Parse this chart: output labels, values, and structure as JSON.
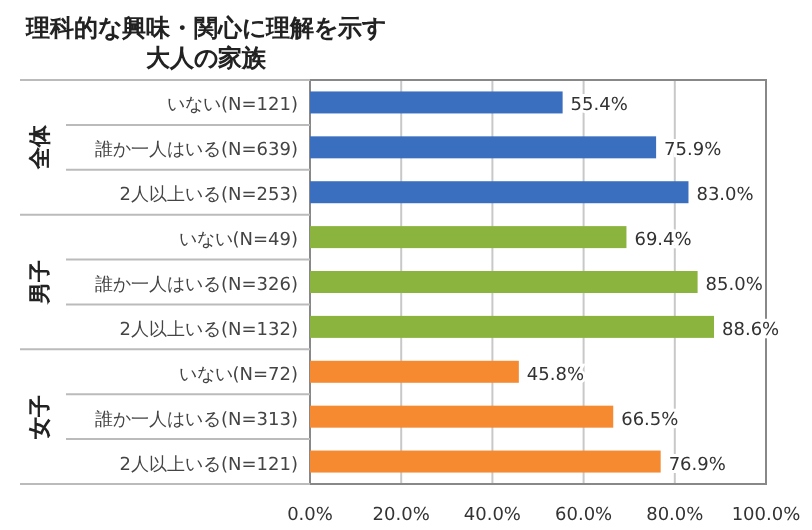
{
  "chart_data": {
    "type": "bar",
    "orientation": "horizontal",
    "title": "理科的な興味・関心に理解を示す大人の家族",
    "categories": [
      "いない(N=121)",
      "誰か一人はいる(N=639)",
      "2人以上いる(N=253)",
      "いない(N=49)",
      "誰か一人はいる(N=326)",
      "2人以上いる(N=132)",
      "いない(N=72)",
      "誰か一人はいる(N=313)",
      "2人以上いる(N=121)"
    ],
    "values": [
      55.4,
      75.9,
      83.0,
      69.4,
      85.0,
      88.6,
      45.8,
      66.5,
      76.9
    ],
    "value_labels": [
      "55.4%",
      "75.9%",
      "83.0%",
      "69.4%",
      "85.0%",
      "88.6%",
      "45.8%",
      "66.5%",
      "76.9%"
    ],
    "colors": [
      "#3a6fc0",
      "#3a6fc0",
      "#3a6fc0",
      "#8bb43f",
      "#8bb43f",
      "#8bb43f",
      "#f58a31",
      "#f58a31",
      "#f58a31"
    ],
    "annotations": [
      "全体",
      "男子",
      "女子"
    ],
    "xlim": [
      0,
      100
    ],
    "xticks": [
      {
        "value": 0,
        "label": "0.0%"
      },
      {
        "value": 20,
        "label": "20.0%"
      },
      {
        "value": 40,
        "label": "40.0%"
      },
      {
        "value": 60,
        "label": "60.0%"
      },
      {
        "value": 80,
        "label": "80.0%"
      },
      {
        "value": 100,
        "label": "100.0%"
      }
    ],
    "grid": "x"
  }
}
